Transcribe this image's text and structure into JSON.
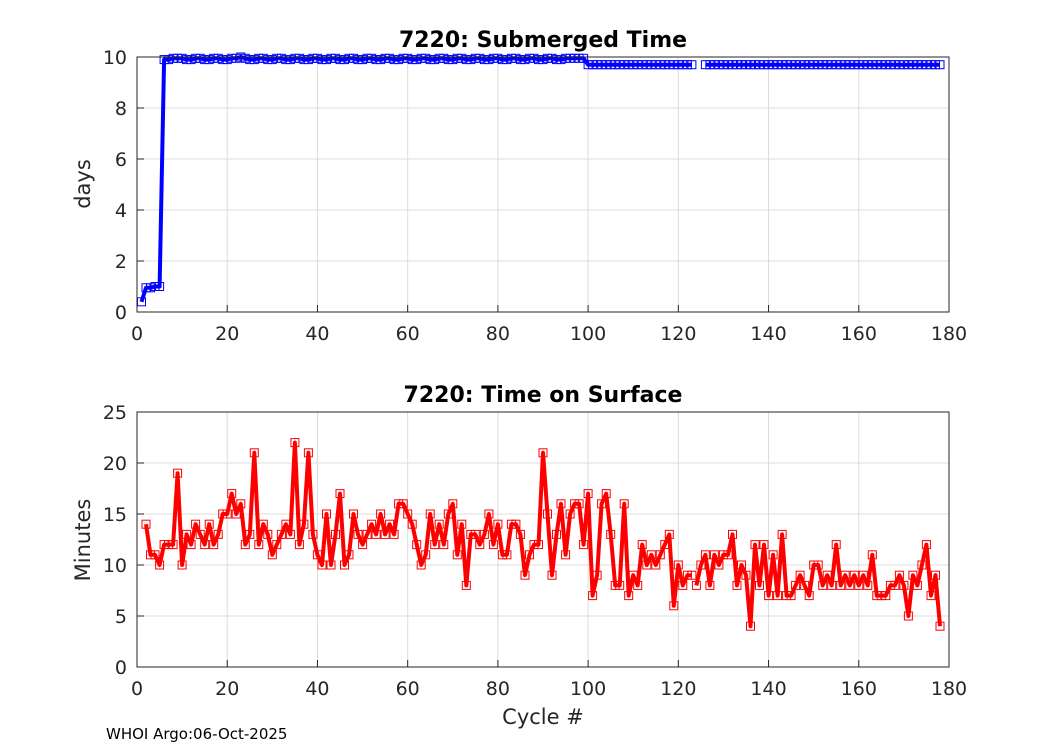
{
  "footer": "WHOI Argo:06-Oct-2025",
  "chart_data": [
    {
      "type": "line",
      "title": "7220: Submerged Time",
      "xlabel": "",
      "ylabel": "days",
      "xlim": [
        0,
        180
      ],
      "ylim": [
        0,
        10
      ],
      "xticks": [
        0,
        20,
        40,
        60,
        80,
        100,
        120,
        140,
        160,
        180
      ],
      "yticks": [
        0,
        2,
        4,
        6,
        8,
        10
      ],
      "grid": true,
      "color": "#0000ff",
      "marker": "square",
      "segments": [
        {
          "x": [
            1,
            2,
            3,
            4,
            5,
            6,
            7,
            8,
            9,
            10,
            11,
            12,
            13,
            14,
            15,
            16,
            17,
            18,
            19,
            20,
            21,
            22,
            23,
            24,
            25,
            26,
            27,
            28,
            29,
            30,
            31,
            32,
            33,
            34,
            35,
            36,
            37,
            38,
            39,
            40,
            41,
            42,
            43,
            44,
            45,
            46,
            47,
            48,
            49,
            50,
            51,
            52,
            53,
            54,
            55,
            56,
            57,
            58,
            59,
            60,
            61,
            62,
            63,
            64,
            65,
            66,
            67,
            68,
            69,
            70,
            71,
            72,
            73,
            74,
            75,
            76,
            77,
            78,
            79,
            80,
            81,
            82,
            83,
            84,
            85,
            86,
            87,
            88,
            89,
            90,
            91,
            92,
            93,
            94,
            95,
            96,
            97,
            98,
            99,
            100,
            101,
            102,
            103,
            104,
            105,
            106,
            107,
            108,
            109,
            110,
            111,
            112,
            113,
            114,
            115,
            116,
            117,
            118,
            119,
            120,
            121,
            122,
            123
          ],
          "y": [
            0.4,
            0.95,
            0.95,
            1.0,
            1.0,
            9.9,
            9.9,
            9.95,
            9.95,
            9.95,
            9.9,
            9.9,
            9.95,
            9.95,
            9.9,
            9.9,
            9.95,
            9.95,
            9.9,
            9.9,
            9.95,
            9.95,
            10.0,
            9.95,
            9.9,
            9.9,
            9.95,
            9.95,
            9.9,
            9.9,
            9.95,
            9.95,
            9.9,
            9.9,
            9.95,
            9.95,
            9.9,
            9.9,
            9.95,
            9.95,
            9.9,
            9.9,
            9.95,
            9.95,
            9.9,
            9.9,
            9.95,
            9.95,
            9.9,
            9.9,
            9.95,
            9.95,
            9.9,
            9.9,
            9.95,
            9.95,
            9.9,
            9.9,
            9.95,
            9.95,
            9.9,
            9.9,
            9.95,
            9.95,
            9.9,
            9.9,
            9.95,
            9.95,
            9.9,
            9.9,
            9.95,
            9.95,
            9.9,
            9.9,
            9.95,
            9.95,
            9.9,
            9.9,
            9.95,
            9.95,
            9.9,
            9.9,
            9.95,
            9.95,
            9.9,
            9.9,
            9.95,
            9.95,
            9.9,
            9.9,
            9.95,
            9.95,
            9.9,
            9.9,
            9.95,
            9.95,
            9.95,
            9.95,
            9.95,
            9.7,
            9.7,
            9.7,
            9.7,
            9.7,
            9.7,
            9.7,
            9.7,
            9.7,
            9.7,
            9.7,
            9.7,
            9.7,
            9.7,
            9.7,
            9.7,
            9.7,
            9.7,
            9.7,
            9.7,
            9.7,
            9.7,
            9.7,
            9.7
          ]
        },
        {
          "x": [
            126,
            127,
            128,
            129,
            130,
            131,
            132,
            133,
            134,
            135,
            136,
            137,
            138,
            139,
            140,
            141,
            142,
            143,
            144,
            145,
            146,
            147,
            148,
            149,
            150,
            151,
            152,
            153,
            154,
            155,
            156,
            157,
            158,
            159,
            160,
            161,
            162,
            163,
            164,
            165,
            166,
            167,
            168,
            169,
            170,
            171,
            172,
            173,
            174,
            175,
            176,
            177,
            178
          ],
          "y": [
            9.7,
            9.7,
            9.7,
            9.7,
            9.7,
            9.7,
            9.7,
            9.7,
            9.7,
            9.7,
            9.7,
            9.7,
            9.7,
            9.7,
            9.7,
            9.7,
            9.7,
            9.7,
            9.7,
            9.7,
            9.7,
            9.7,
            9.7,
            9.7,
            9.7,
            9.7,
            9.7,
            9.7,
            9.7,
            9.7,
            9.7,
            9.7,
            9.7,
            9.7,
            9.7,
            9.7,
            9.7,
            9.7,
            9.7,
            9.7,
            9.7,
            9.7,
            9.7,
            9.7,
            9.7,
            9.7,
            9.7,
            9.7,
            9.7,
            9.7,
            9.7,
            9.7,
            9.7
          ]
        }
      ]
    },
    {
      "type": "line",
      "title": "7220: Time on Surface",
      "xlabel": "Cycle #",
      "ylabel": "Minutes",
      "xlim": [
        0,
        180
      ],
      "ylim": [
        0,
        25
      ],
      "xticks": [
        0,
        20,
        40,
        60,
        80,
        100,
        120,
        140,
        160,
        180
      ],
      "yticks": [
        0,
        5,
        10,
        15,
        20,
        25
      ],
      "grid": true,
      "color": "#ff0000",
      "marker": "square",
      "segments": [
        {
          "x": [
            2,
            3,
            4,
            5,
            6,
            7,
            8,
            9,
            10,
            11,
            12,
            13,
            14,
            15,
            16,
            17,
            18,
            19,
            20,
            21,
            22,
            23,
            24,
            25,
            26,
            27,
            28,
            29,
            30,
            31,
            32,
            33,
            34,
            35,
            36,
            37,
            38,
            39,
            40,
            41,
            42,
            43,
            44,
            45,
            46,
            47,
            48,
            49,
            50,
            51,
            52,
            53,
            54,
            55,
            56,
            57,
            58,
            59,
            60,
            61,
            62,
            63,
            64,
            65,
            66,
            67,
            68,
            69,
            70,
            71,
            72,
            73,
            74,
            75,
            76,
            77,
            78,
            79,
            80,
            81,
            82,
            83,
            84,
            85,
            86,
            87,
            88,
            89,
            90,
            91,
            92,
            93,
            94,
            95,
            96,
            97,
            98,
            99,
            100,
            101,
            102,
            103,
            104,
            105,
            106,
            107,
            108,
            109,
            110,
            111,
            112,
            113,
            114,
            115,
            116,
            117,
            118,
            119,
            120,
            121,
            122,
            123
          ],
          "y": [
            14,
            11,
            11,
            10,
            12,
            12,
            12,
            19,
            10,
            13,
            12,
            14,
            13,
            12,
            14,
            12,
            13,
            15,
            15,
            17,
            15,
            16,
            12,
            13,
            21,
            12,
            14,
            13,
            11,
            12,
            13,
            14,
            13,
            22,
            12,
            14,
            21,
            13,
            11,
            10,
            15,
            10,
            13,
            17,
            10,
            11,
            15,
            13,
            12,
            13,
            14,
            13,
            15,
            13,
            14,
            13,
            16,
            16,
            15,
            14,
            12,
            10,
            11,
            15,
            12,
            14,
            12,
            15,
            16,
            11,
            14,
            8,
            13,
            13,
            12,
            13,
            15,
            12,
            14,
            11,
            11,
            14,
            14,
            13,
            9,
            11,
            12,
            12,
            21,
            15,
            9,
            13,
            16,
            11,
            15,
            16,
            16,
            12,
            17,
            7,
            9,
            16,
            17,
            13,
            8,
            8,
            16,
            7,
            9,
            8,
            12,
            10,
            11,
            10,
            11,
            12,
            13,
            6,
            10,
            8,
            9,
            9
          ]
        },
        {
          "x": [
            124,
            125,
            126,
            127,
            128,
            129,
            130,
            131,
            132,
            133,
            134,
            135,
            136,
            137,
            138,
            139,
            140,
            141,
            142,
            143,
            144,
            145,
            146,
            147,
            148,
            149,
            150,
            151,
            152,
            153,
            154,
            155,
            156,
            157,
            158,
            159,
            160,
            161,
            162,
            163,
            164,
            165,
            166,
            167,
            168,
            169,
            170,
            171,
            172,
            173,
            174,
            175,
            176,
            177,
            178
          ],
          "y": [
            8,
            10,
            11,
            8,
            11,
            10,
            11,
            11,
            13,
            8,
            10,
            9,
            4,
            12,
            8,
            12,
            7,
            11,
            7,
            13,
            7,
            7,
            8,
            9,
            8,
            7,
            10,
            10,
            8,
            9,
            8,
            12,
            8,
            9,
            8,
            9,
            8,
            9,
            8,
            11,
            7,
            7,
            7,
            8,
            8,
            9,
            8,
            5,
            9,
            8,
            10,
            12,
            7,
            9,
            4
          ]
        }
      ]
    }
  ]
}
